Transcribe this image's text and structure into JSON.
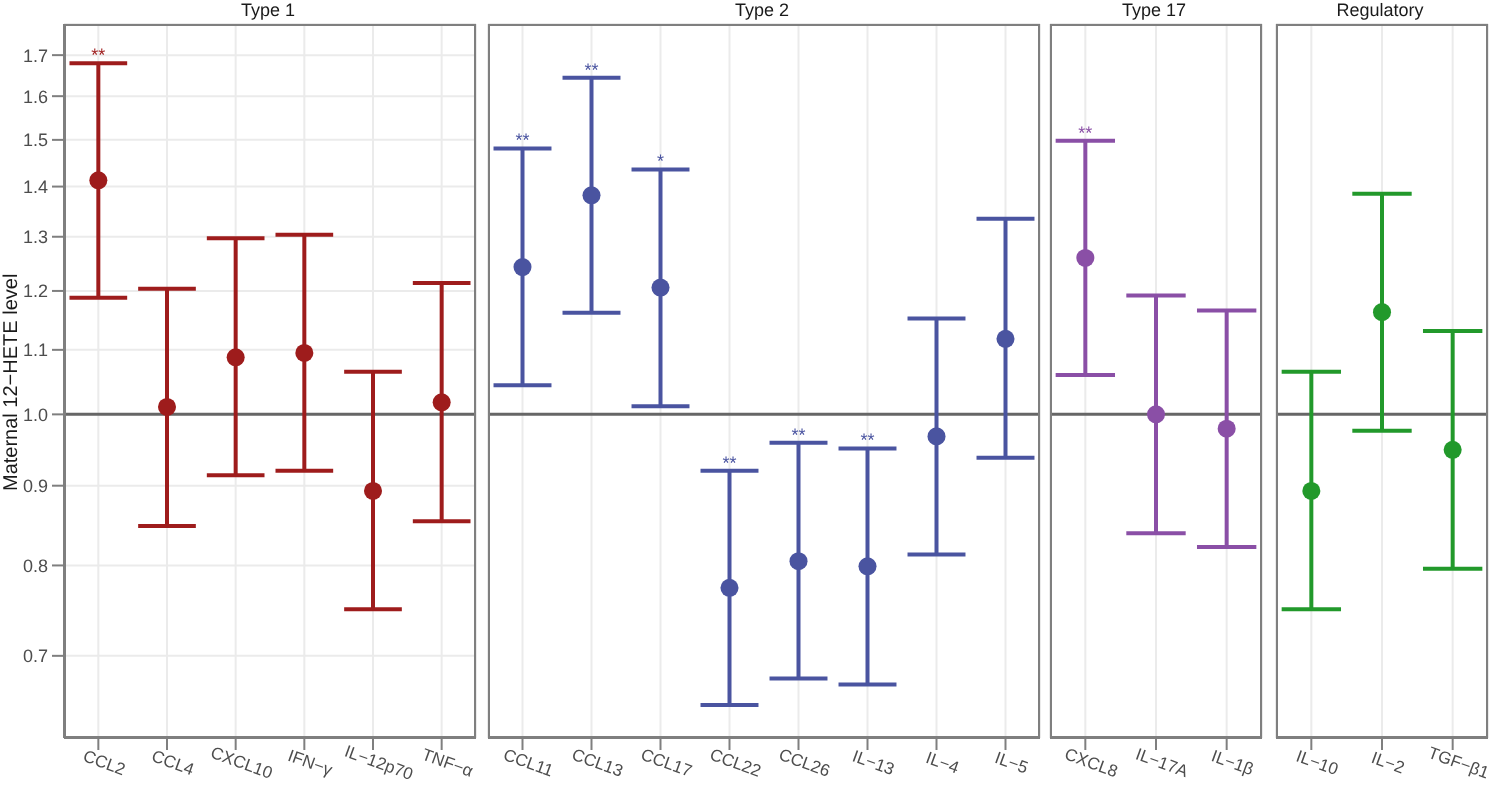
{
  "chart_data": [
    {
      "type": "scatter",
      "title": "Type 1",
      "ylabel": "Maternal 12−HETE level",
      "categories": [
        "CCL2",
        "CCL4",
        "CXCL10",
        "IFN−γ",
        "IL−12p70",
        "TNF−α"
      ],
      "series": [
        {
          "color": "#9e1c1c",
          "values": [
            1.413,
            1.011,
            1.088,
            1.095,
            0.893,
            1.018
          ],
          "errors": [
            [
              1.188,
              1.68
            ],
            [
              0.848,
              1.204
            ],
            [
              0.914,
              1.297
            ],
            [
              0.92,
              1.304
            ],
            [
              0.75,
              1.065
            ],
            [
              0.854,
              1.214
            ]
          ]
        }
      ],
      "log": "y",
      "ylim": [
        0.62,
        1.78
      ],
      "yticks": [
        0.7,
        0.8,
        0.9,
        {
          "value": 1,
          "label": "1.0"
        },
        1.1,
        1.2,
        1.3,
        1.4,
        1.5,
        1.6,
        1.7
      ],
      "grid": true,
      "marker": "circle",
      "ref_lines": [
        {
          "axis": "y",
          "value": 1,
          "color": "#666666"
        }
      ],
      "annotations": [
        {
          "text": "**",
          "x": "CCL2",
          "y": 1.68
        }
      ]
    },
    {
      "type": "scatter",
      "title": "Type 2",
      "categories": [
        "CCL11",
        "CCL13",
        "CCL17",
        "CCL22",
        "CCL26",
        "IL−13",
        "IL−4",
        "IL−5"
      ],
      "series": [
        {
          "color": "#4a54a0",
          "values": [
            1.243,
            1.382,
            1.206,
            0.774,
            0.805,
            0.799,
            0.968,
            1.118
          ],
          "errors": [
            [
              1.044,
              1.481
            ],
            [
              1.162,
              1.644
            ],
            [
              1.012,
              1.436
            ],
            [
              0.651,
              0.92
            ],
            [
              0.677,
              0.959
            ],
            [
              0.671,
              0.951
            ],
            [
              0.813,
              1.152
            ],
            [
              0.938,
              1.335
            ]
          ]
        }
      ],
      "log": "y",
      "ylim": [
        0.62,
        1.78
      ],
      "yticks": [
        0.7,
        0.8,
        0.9,
        1,
        1.1,
        1.2,
        1.3,
        1.4,
        1.5,
        1.6,
        1.7
      ],
      "grid": true,
      "marker": "circle",
      "tick_labels": "x",
      "ref_lines": [
        {
          "axis": "y",
          "value": 1,
          "color": "#666666"
        }
      ],
      "annotations": [
        {
          "text": "**",
          "x": "CCL11",
          "y": 1.481
        },
        {
          "text": "**",
          "x": "CCL13",
          "y": 1.644
        },
        {
          "text": "*",
          "x": "CCL17",
          "y": 1.436
        },
        {
          "text": "**",
          "x": "CCL22",
          "y": 0.92
        },
        {
          "text": "**",
          "x": "CCL26",
          "y": 0.959
        },
        {
          "text": "**",
          "x": "IL−13",
          "y": 0.951
        }
      ]
    },
    {
      "type": "scatter",
      "title": "Type 17",
      "categories": [
        "CXCL8",
        "IL−17A",
        "IL−1β"
      ],
      "series": [
        {
          "color": "#8a4fa6",
          "values": [
            1.26,
            1.0,
            0.979
          ],
          "errors": [
            [
              1.06,
              1.498
            ],
            [
              0.839,
              1.192
            ],
            [
              0.822,
              1.166
            ]
          ]
        }
      ],
      "log": "y",
      "ylim": [
        0.62,
        1.78
      ],
      "yticks": [
        0.7,
        0.8,
        0.9,
        1,
        1.1,
        1.2,
        1.3,
        1.4,
        1.5,
        1.6,
        1.7
      ],
      "grid": true,
      "marker": "circle",
      "tick_labels": "x",
      "ref_lines": [
        {
          "axis": "y",
          "value": 1,
          "color": "#666666"
        }
      ],
      "annotations": [
        {
          "text": "**",
          "x": "CXCL8",
          "y": 1.498
        }
      ]
    },
    {
      "type": "scatter",
      "title": "Regulatory",
      "categories": [
        "IL−10",
        "IL−2",
        "TGF−β1"
      ],
      "series": [
        {
          "color": "#22992b",
          "values": [
            0.893,
            1.163,
            0.949
          ],
          "errors": [
            [
              0.75,
              1.065
            ],
            [
              0.976,
              1.385
            ],
            [
              0.796,
              1.131
            ]
          ]
        }
      ],
      "log": "y",
      "ylim": [
        0.62,
        1.78
      ],
      "yticks": [
        0.7,
        0.8,
        0.9,
        1,
        1.1,
        1.2,
        1.3,
        1.4,
        1.5,
        1.6,
        1.7
      ],
      "grid": true,
      "marker": "circle",
      "tick_labels": "x",
      "ref_lines": [
        {
          "axis": "y",
          "value": 1,
          "color": "#666666"
        }
      ]
    }
  ]
}
